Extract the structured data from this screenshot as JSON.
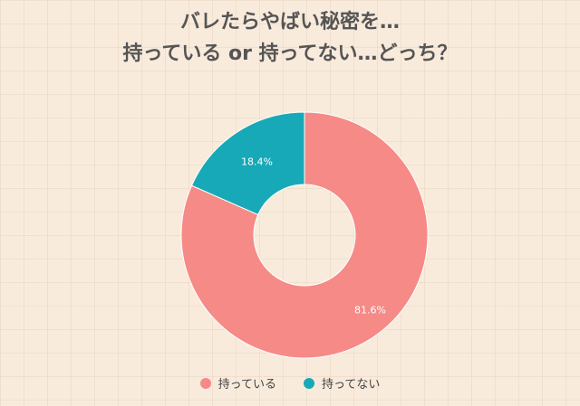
{
  "title_line1": "バレたらやばい秘密を…",
  "title_line2": "持っている or 持ってない…どっち？",
  "chart_data": {
    "type": "pie",
    "donut": true,
    "categories": [
      "持っている",
      "持ってない"
    ],
    "values": [
      81.6,
      18.4
    ],
    "labels": [
      "81.6%",
      "18.4%"
    ],
    "colors": [
      "#f58a87",
      "#17a9b7"
    ],
    "legend_position": "bottom"
  }
}
